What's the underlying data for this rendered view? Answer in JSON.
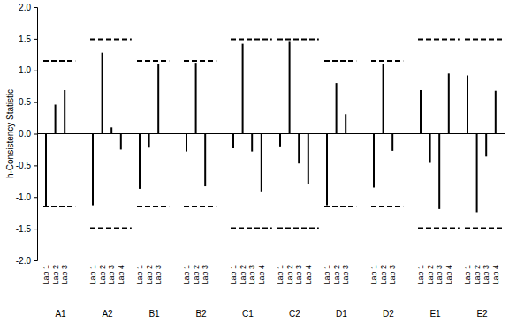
{
  "chart_data": {
    "type": "bar",
    "y_label": "h-Consistency Statistic",
    "color": "#000000",
    "ylim": [
      -2,
      2
    ],
    "yticks": [
      {
        "value": -2,
        "label": "-2.0"
      },
      {
        "value": -1.5,
        "label": "-1.5"
      },
      {
        "value": -1,
        "label": "-1.0"
      },
      {
        "value": -0.5,
        "label": "-0.5"
      },
      {
        "value": 0,
        "label": "0.0"
      },
      {
        "value": 0.5,
        "label": "0.5"
      },
      {
        "value": 1,
        "label": "1.0"
      },
      {
        "value": 1.5,
        "label": "1.5"
      },
      {
        "value": 2,
        "label": "2.0"
      }
    ],
    "groups": [
      {
        "name": "A1",
        "categories": [
          "Lab 1",
          "Lab 2",
          "Lab 3"
        ],
        "values": [
          -1.15,
          0.46,
          0.69
        ],
        "critical_values": [
          1.15,
          -1.15
        ]
      },
      {
        "name": "A2",
        "categories": [
          "Lab 1",
          "Lab 2",
          "Lab 3",
          "Lab 4"
        ],
        "values": [
          -1.13,
          1.28,
          0.1,
          -0.25
        ],
        "critical_values": [
          1.49,
          -1.49
        ]
      },
      {
        "name": "B1",
        "categories": [
          "Lab 1",
          "Lab 2",
          "Lab 3"
        ],
        "values": [
          -0.87,
          -0.22,
          1.1
        ],
        "critical_values": [
          1.15,
          -1.15
        ]
      },
      {
        "name": "B2",
        "categories": [
          "Lab 1",
          "Lab 2",
          "Lab 3"
        ],
        "values": [
          -0.28,
          1.12,
          -0.83
        ],
        "critical_values": [
          1.15,
          -1.15
        ]
      },
      {
        "name": "C1",
        "categories": [
          "Lab 1",
          "Lab 2",
          "Lab 3",
          "Lab 4"
        ],
        "values": [
          -0.23,
          1.42,
          -0.28,
          -0.91
        ],
        "critical_values": [
          1.49,
          -1.49
        ]
      },
      {
        "name": "C2",
        "categories": [
          "Lab 1",
          "Lab 2",
          "Lab 3",
          "Lab 4"
        ],
        "values": [
          -0.2,
          1.45,
          -0.47,
          -0.79
        ],
        "critical_values": [
          1.49,
          -1.49
        ]
      },
      {
        "name": "D1",
        "categories": [
          "Lab 1",
          "Lab 2",
          "Lab 3"
        ],
        "values": [
          -1.13,
          0.8,
          0.31
        ],
        "critical_values": [
          1.15,
          -1.15
        ]
      },
      {
        "name": "D2",
        "categories": [
          "Lab 1",
          "Lab 2",
          "Lab 3"
        ],
        "values": [
          -0.85,
          1.1,
          -0.27
        ],
        "critical_values": [
          1.15,
          -1.15
        ]
      },
      {
        "name": "E1",
        "categories": [
          "Lab 1",
          "Lab 2",
          "Lab 3",
          "Lab 4"
        ],
        "values": [
          0.69,
          -0.46,
          -1.19,
          0.95
        ],
        "critical_values": [
          1.49,
          -1.49
        ]
      },
      {
        "name": "E2",
        "categories": [
          "Lab 1",
          "Lab 2",
          "Lab 3",
          "Lab 4"
        ],
        "values": [
          0.92,
          -1.24,
          -0.36,
          0.68
        ],
        "critical_values": [
          1.49,
          -1.49
        ]
      }
    ]
  }
}
